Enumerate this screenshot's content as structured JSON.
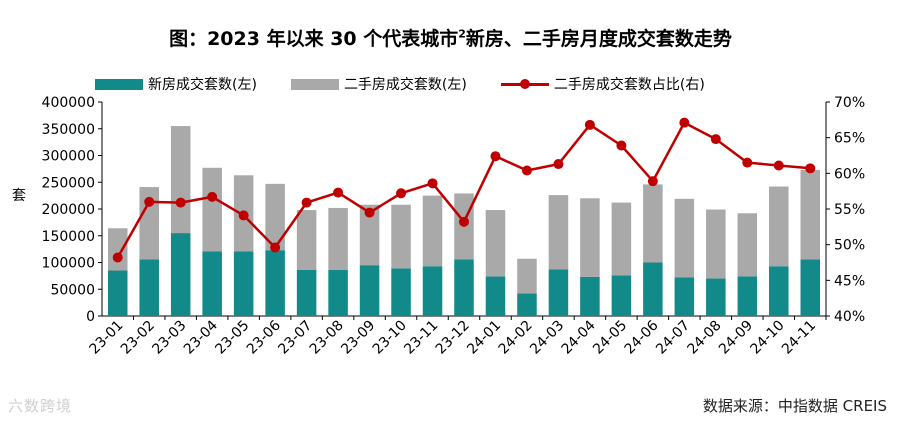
{
  "title_prefix": "图：2023 年以来 30 个代表城市",
  "title_sup": "2",
  "title_suffix": "新房、二手房月度成交套数走势",
  "source": "数据来源：中指数据 CREIS",
  "watermark": "六数跨境",
  "colors": {
    "new": "#128a8a",
    "second": "#a9a9a9",
    "ratio": "#c00000"
  },
  "chart_data": {
    "type": "bar",
    "categories": [
      "23-01",
      "23-02",
      "23-03",
      "23-04",
      "23-05",
      "23-06",
      "23-07",
      "23-08",
      "23-09",
      "23-10",
      "23-11",
      "23-12",
      "24-01",
      "24-02",
      "24-03",
      "24-04",
      "24-05",
      "24-06",
      "24-07",
      "24-08",
      "24-09",
      "24-10",
      "24-11"
    ],
    "ylabel": "套",
    "ylim": [
      0,
      400000
    ],
    "yticks": [
      "0",
      "50000",
      "100000",
      "150000",
      "200000",
      "250000",
      "300000",
      "350000",
      "400000"
    ],
    "y2lim": [
      0.4,
      0.7
    ],
    "y2ticks": [
      "40%",
      "45%",
      "50%",
      "55%",
      "60%",
      "65%",
      "70%"
    ],
    "legend_position": "top",
    "series": [
      {
        "name": "新房成交套数(左)",
        "kind": "bar",
        "axis": "left",
        "values": [
          85000,
          106000,
          155000,
          121000,
          121000,
          123000,
          86000,
          86000,
          95000,
          89000,
          93000,
          106000,
          74000,
          42000,
          87000,
          73000,
          76000,
          100000,
          72000,
          70000,
          74000,
          93000,
          106000
        ]
      },
      {
        "name": "二手房成交套数(左)",
        "kind": "bar",
        "axis": "left",
        "values": [
          79000,
          135000,
          200000,
          156000,
          142000,
          124000,
          112000,
          116000,
          113000,
          119000,
          132000,
          123000,
          124000,
          65000,
          139000,
          147000,
          136000,
          146000,
          147000,
          129000,
          118000,
          149000,
          167000
        ]
      },
      {
        "name": "二手房成交套数占比(右)",
        "kind": "line",
        "axis": "right",
        "values": [
          0.482,
          0.56,
          0.559,
          0.567,
          0.541,
          0.496,
          0.559,
          0.573,
          0.545,
          0.572,
          0.586,
          0.532,
          0.624,
          0.604,
          0.613,
          0.668,
          0.639,
          0.589,
          0.671,
          0.648,
          0.615,
          0.611,
          0.607
        ]
      }
    ]
  }
}
